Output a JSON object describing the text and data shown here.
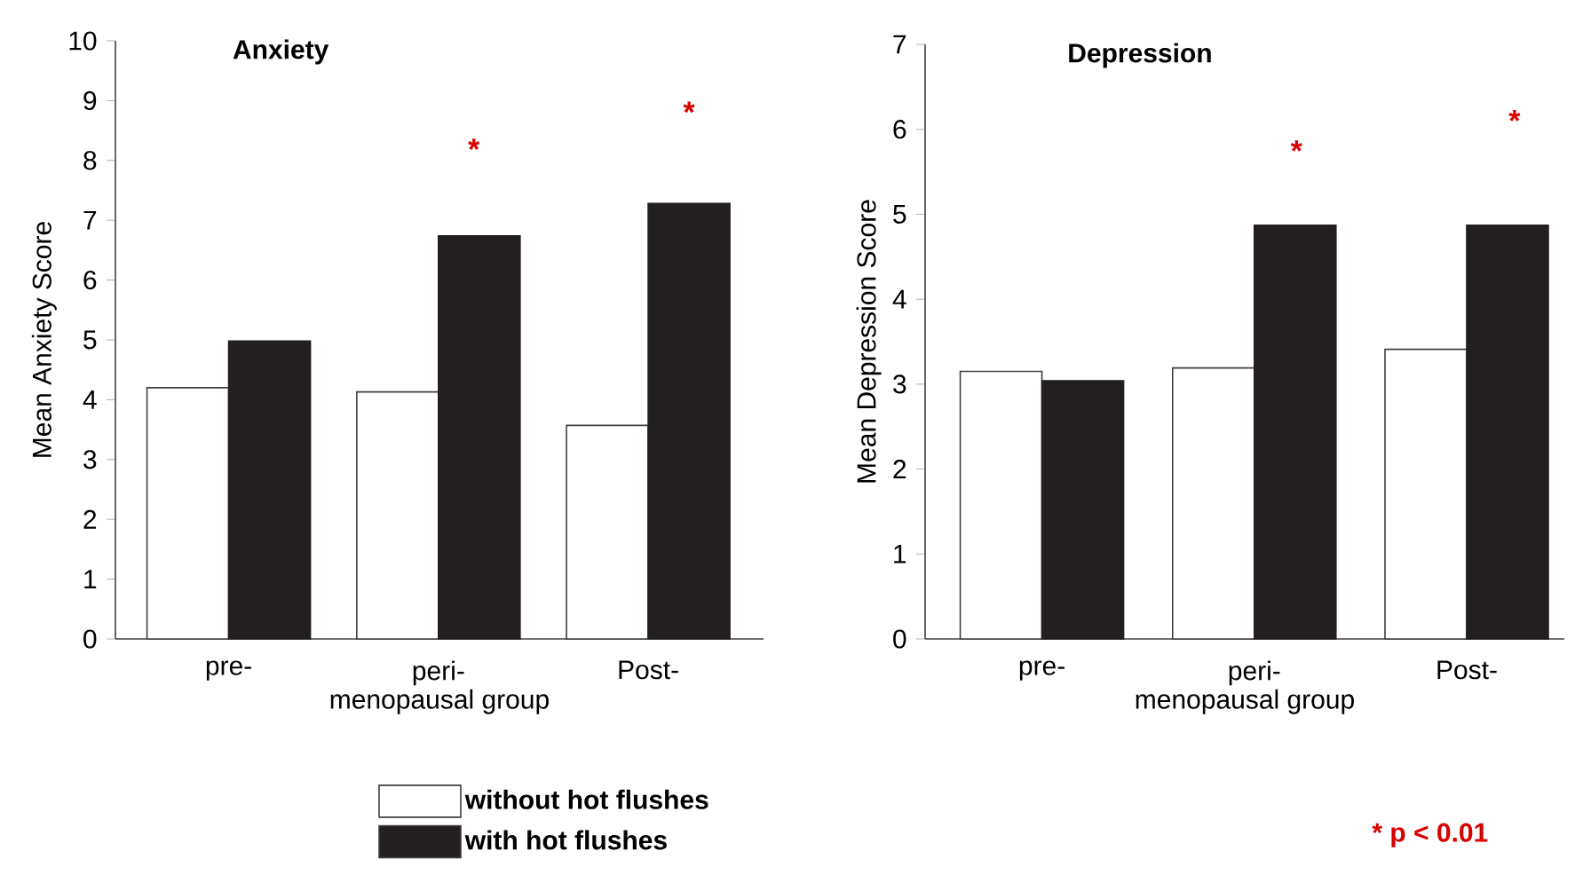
{
  "chart_data": [
    {
      "type": "bar",
      "title": "Anxiety",
      "xlabel": "menopausal group",
      "ylabel": "Mean Anxiety Score",
      "categories": [
        "pre-",
        "peri-",
        "Post-"
      ],
      "series": [
        {
          "name": "without hot flushes",
          "color": "#ffffff",
          "values": [
            4.2,
            4.13,
            3.57
          ]
        },
        {
          "name": "with hot flushes",
          "color": "#231f20",
          "values": [
            4.98,
            6.74,
            7.28
          ]
        }
      ],
      "ylim": [
        0,
        10
      ],
      "yticks": [
        0,
        1,
        2,
        3,
        4,
        5,
        6,
        7,
        8,
        9,
        10
      ],
      "legend": "bottom",
      "annotations": [
        "*",
        "*"
      ]
    },
    {
      "type": "bar",
      "title": "Depression",
      "xlabel": "menopausal group",
      "ylabel": "Mean Depression Score",
      "categories": [
        "pre-",
        "peri-",
        "Post-"
      ],
      "series": [
        {
          "color": "#ffffff",
          "values": [
            3.15,
            3.19,
            3.41
          ]
        },
        {
          "color": "#231f20",
          "values": [
            3.04,
            4.87,
            4.87
          ]
        }
      ],
      "ylim": [
        0,
        7
      ],
      "yticks": [
        0,
        1,
        2,
        3,
        4,
        5,
        6,
        7
      ],
      "annotations": [
        "*",
        "*",
        "* p < 0.01"
      ]
    }
  ]
}
